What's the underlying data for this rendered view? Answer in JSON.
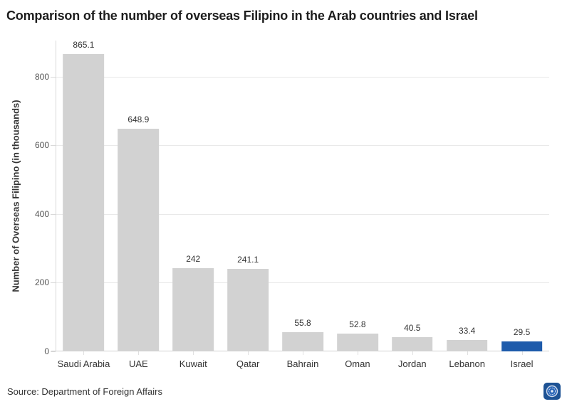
{
  "chart_data": {
    "type": "bar",
    "title": "Comparison of the number of overseas Filipino in the Arab countries and Israel",
    "categories": [
      "Saudi Arabia",
      "UAE",
      "Kuwait",
      "Qatar",
      "Bahrain",
      "Oman",
      "Jordan",
      "Lebanon",
      "Israel"
    ],
    "values": [
      865.1,
      648.9,
      242,
      241.1,
      55.8,
      52.8,
      40.5,
      33.4,
      29.5
    ],
    "ylabel": "Number of Overseas Filipino (in thousands)",
    "xlabel": "",
    "yticks": [
      0,
      200,
      400,
      600,
      800
    ],
    "ylim": [
      0,
      905
    ],
    "grid": true,
    "legend": "none",
    "value_labels_shown": true,
    "bar_color": "#d2d2d2",
    "highlight": {
      "category": "Israel",
      "color": "#1e5bab"
    }
  },
  "footer": {
    "source": "Source: Department of Foreign Affairs",
    "badge_icon": "seal-icon"
  },
  "colors": {
    "title_text": "#1d1d1d",
    "axis_text": "#555555",
    "label_text": "#333333",
    "gridline": "#e9e9e9",
    "baseline": "#cfcfcf",
    "axis_line": "#d9d9d9",
    "badge_background": "#1d5294"
  }
}
